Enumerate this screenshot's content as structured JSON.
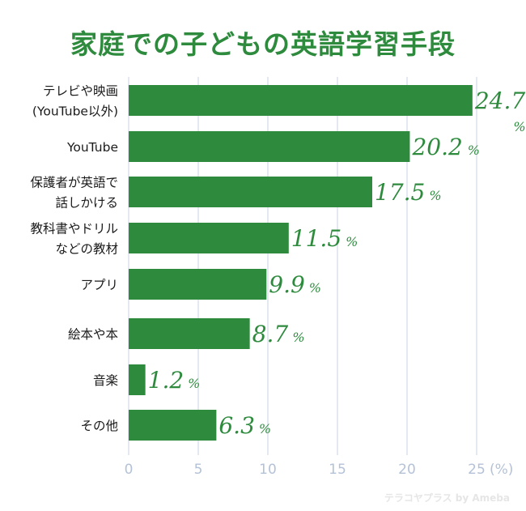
{
  "chart_data": {
    "type": "bar",
    "orientation": "horizontal",
    "title": "家庭での子どもの英語学習手段",
    "categories": [
      [
        "テレビや映画",
        "(YouTube以外)"
      ],
      [
        "YouTube"
      ],
      [
        "保護者が英語で",
        "話しかける"
      ],
      [
        "教科書やドリル",
        "などの教材"
      ],
      [
        "アプリ"
      ],
      [
        "絵本や本"
      ],
      [
        "音楽"
      ],
      [
        "その他"
      ]
    ],
    "values": [
      24.7,
      20.2,
      17.5,
      11.5,
      9.9,
      8.7,
      1.2,
      6.3
    ],
    "value_labels": [
      "24.7",
      "20.2",
      "17.5",
      "11.5",
      "9.9",
      "8.7",
      "1.2",
      "6.3"
    ],
    "unit_label": "%",
    "xlim": [
      0,
      25
    ],
    "xticks": [
      "0",
      "5",
      "10",
      "15",
      "20",
      "25"
    ],
    "xaxis_unit": "(%)",
    "grid": true,
    "bar_color": "#2e8a3c"
  },
  "watermark": "テラコヤプラス by Ameba"
}
